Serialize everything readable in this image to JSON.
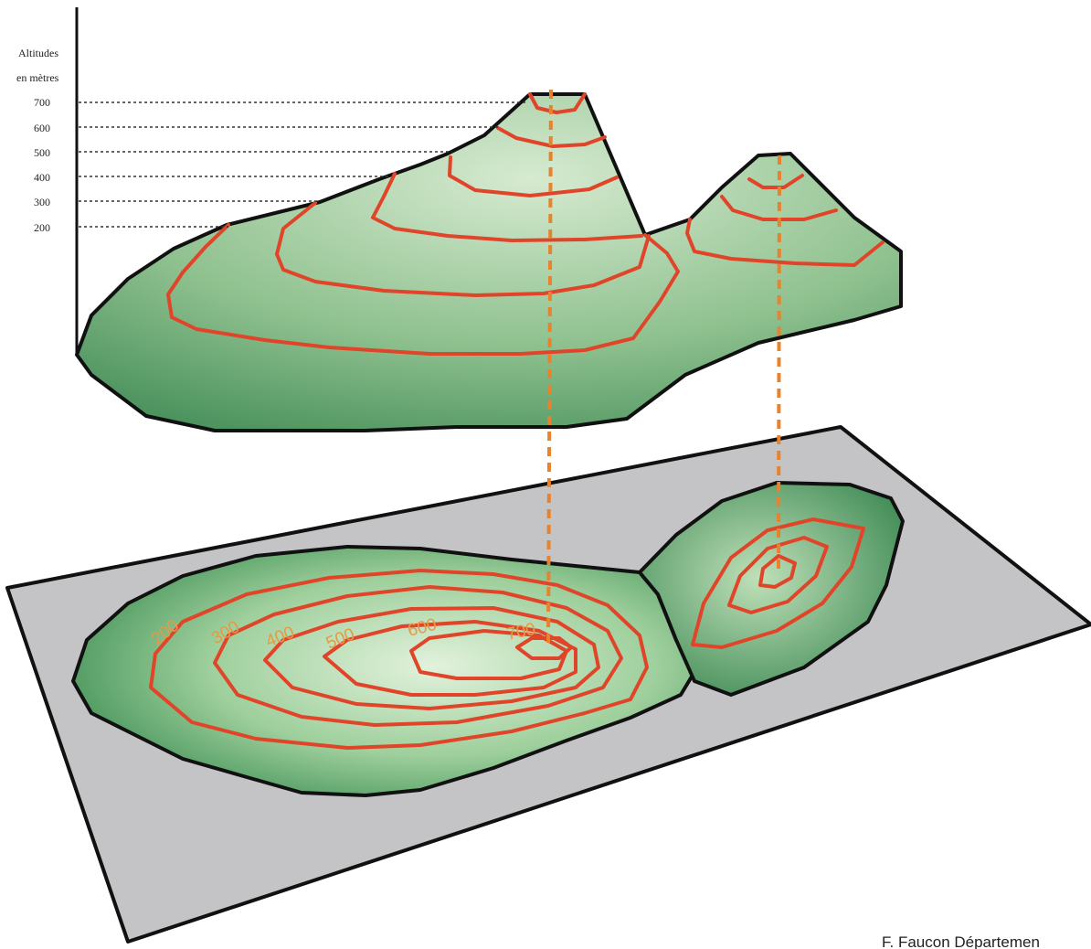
{
  "axis": {
    "title_line1": "Altitudes",
    "title_line2": "en mètres",
    "ticks": [
      "700",
      "600",
      "500",
      "400",
      "300",
      "200"
    ]
  },
  "map_labels": {
    "label_200": "200",
    "label_300": "300",
    "label_400": "400",
    "label_500": "500",
    "label_600": "600",
    "label_700": "700"
  },
  "credit": "F. Faucon Départemen",
  "colors": {
    "terrain_light": "#d8ecd2",
    "terrain_dark": "#3f8a55",
    "contour": "#e0452a",
    "projection": "#e8822c",
    "map_sheet": "#c4c4c6",
    "outline": "#111111"
  }
}
